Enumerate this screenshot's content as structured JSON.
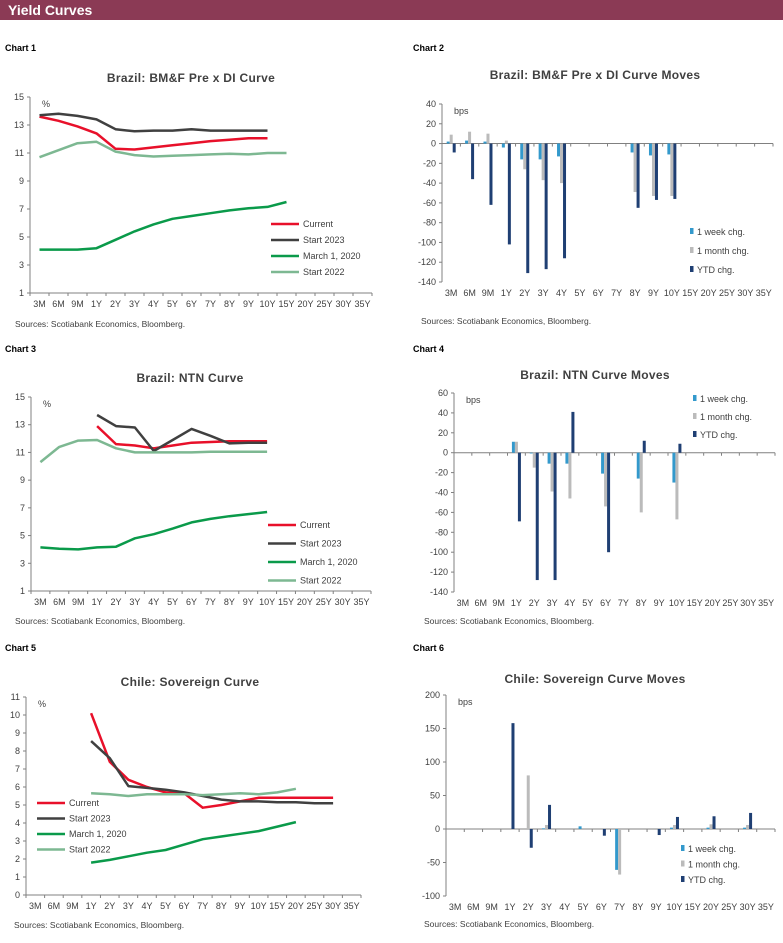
{
  "header": {
    "title": "Yield Curves"
  },
  "panels": [
    {
      "label": "Chart 1",
      "source": "Sources: Scotiabank Economics, Bloomberg."
    },
    {
      "label": "Chart 2",
      "source": "Sources: Scotiabank Economics, Bloomberg."
    },
    {
      "label": "Chart 3",
      "source": "Sources: Scotiabank Economics, Bloomberg."
    },
    {
      "label": "Chart 4",
      "source": "Sources: Scotiabank Economics, Bloomberg."
    },
    {
      "label": "Chart 5",
      "source": "Sources: Scotiabank Economics, Bloomberg."
    },
    {
      "label": "Chart 6",
      "source": "Sources: Scotiabank Economics, Bloomberg."
    }
  ],
  "colors": {
    "header": "#8B3A55",
    "current": "#E8102A",
    "start2023": "#404040",
    "march2020": "#0A9A4A",
    "start2022": "#7DB892",
    "week": "#3399CC",
    "month": "#BBBBBB",
    "ytd": "#1F3F73"
  },
  "chart_data": [
    {
      "type": "line",
      "title": "Brazil: BM&F Pre x DI Curve",
      "ylabel": "%",
      "ylim": [
        1,
        15
      ],
      "y_ticks": [
        1,
        3,
        5,
        7,
        9,
        11,
        13,
        15
      ],
      "legend": "right",
      "categories": [
        "3M",
        "6M",
        "9M",
        "1Y",
        "2Y",
        "3Y",
        "4Y",
        "5Y",
        "6Y",
        "7Y",
        "8Y",
        "9Y",
        "10Y",
        "15Y",
        "20Y",
        "25Y",
        "30Y",
        "35Y"
      ],
      "series": [
        {
          "name": "Current",
          "color": "#E8102A",
          "values": [
            13.6,
            13.3,
            12.9,
            12.4,
            11.3,
            11.25,
            11.4,
            11.55,
            11.7,
            11.85,
            11.95,
            12.05,
            12.05,
            null,
            null,
            null,
            null,
            null
          ]
        },
        {
          "name": "Start 2023",
          "color": "#404040",
          "values": [
            13.7,
            13.8,
            13.65,
            13.4,
            12.7,
            12.55,
            12.6,
            12.6,
            12.7,
            12.6,
            12.6,
            12.6,
            12.6,
            null,
            null,
            null,
            null,
            null
          ]
        },
        {
          "name": "March 1, 2020",
          "color": "#0A9A4A",
          "values": [
            4.1,
            4.1,
            4.1,
            4.2,
            4.8,
            5.4,
            5.9,
            6.3,
            6.5,
            6.7,
            6.9,
            7.05,
            7.15,
            7.5,
            null,
            null,
            null,
            null
          ]
        },
        {
          "name": "Start 2022",
          "color": "#7DB892",
          "values": [
            10.7,
            11.2,
            11.7,
            11.8,
            11.1,
            10.85,
            10.75,
            10.8,
            10.85,
            10.9,
            10.95,
            10.9,
            11.0,
            11.0,
            null,
            null,
            null,
            null
          ]
        }
      ]
    },
    {
      "type": "bar",
      "title": "Brazil: BM&F Pre x DI Curve Moves",
      "ylabel": "bps",
      "ylim": [
        -140,
        40
      ],
      "y_ticks": [
        -140,
        -120,
        -100,
        -80,
        -60,
        -40,
        -20,
        0,
        20,
        40
      ],
      "legend": "bottom-right",
      "categories": [
        "3M",
        "6M",
        "9M",
        "1Y",
        "2Y",
        "3Y",
        "4Y",
        "5Y",
        "6Y",
        "7Y",
        "8Y",
        "9Y",
        "10Y",
        "15Y",
        "20Y",
        "25Y",
        "30Y",
        "35Y"
      ],
      "series": [
        {
          "name": "1 week chg.",
          "color": "#3399CC",
          "values": [
            2,
            3,
            2,
            -4,
            -16,
            -16,
            -13,
            null,
            null,
            null,
            -9,
            -12,
            -11,
            null,
            null,
            null,
            null,
            null
          ]
        },
        {
          "name": "1 month chg.",
          "color": "#BBBBBB",
          "values": [
            9,
            12,
            10,
            3,
            -26,
            -37,
            -40,
            null,
            null,
            null,
            -49,
            -53,
            -53,
            null,
            null,
            null,
            null,
            null
          ]
        },
        {
          "name": "YTD chg.",
          "color": "#1F3F73",
          "values": [
            -9,
            -36,
            -62,
            -102,
            -131,
            -127,
            -116,
            null,
            null,
            null,
            -65,
            -57,
            -56,
            null,
            null,
            null,
            null,
            null
          ]
        }
      ]
    },
    {
      "type": "line",
      "title": "Brazil: NTN Curve",
      "ylabel": "%",
      "ylim": [
        1,
        15
      ],
      "y_ticks": [
        1,
        3,
        5,
        7,
        9,
        11,
        13,
        15
      ],
      "legend": "right",
      "categories": [
        "3M",
        "6M",
        "9M",
        "1Y",
        "2Y",
        "3Y",
        "4Y",
        "5Y",
        "6Y",
        "7Y",
        "8Y",
        "9Y",
        "10Y",
        "15Y",
        "20Y",
        "25Y",
        "30Y",
        "35Y"
      ],
      "series": [
        {
          "name": "Current",
          "color": "#E8102A",
          "values": [
            null,
            null,
            null,
            12.9,
            11.6,
            11.5,
            11.3,
            11.5,
            11.7,
            11.75,
            11.8,
            11.8,
            11.8,
            null,
            null,
            null,
            null,
            null
          ]
        },
        {
          "name": "Start 2023",
          "color": "#404040",
          "values": [
            null,
            null,
            null,
            13.7,
            12.9,
            12.8,
            11.1,
            11.9,
            12.7,
            12.2,
            11.65,
            11.7,
            11.7,
            null,
            null,
            null,
            null,
            null
          ]
        },
        {
          "name": "March 1, 2020",
          "color": "#0A9A4A",
          "values": [
            4.15,
            4.05,
            4.0,
            4.15,
            4.2,
            4.8,
            5.1,
            5.5,
            5.95,
            6.2,
            6.4,
            6.55,
            6.7,
            null,
            null,
            null,
            null,
            null
          ]
        },
        {
          "name": "Start 2022",
          "color": "#7DB892",
          "values": [
            10.3,
            11.4,
            11.85,
            11.9,
            11.3,
            11.0,
            11.0,
            11.0,
            11.0,
            11.05,
            11.05,
            11.05,
            11.05,
            null,
            null,
            null,
            null,
            null
          ]
        }
      ]
    },
    {
      "type": "bar",
      "title": "Brazil: NTN Curve Moves",
      "ylabel": "bps",
      "ylim": [
        -140,
        60
      ],
      "y_ticks": [
        -140,
        -120,
        -100,
        -80,
        -60,
        -40,
        -20,
        0,
        20,
        40,
        60
      ],
      "legend": "top-right",
      "categories": [
        "3M",
        "6M",
        "9M",
        "1Y",
        "2Y",
        "3Y",
        "4Y",
        "5Y",
        "6Y",
        "7Y",
        "8Y",
        "9Y",
        "10Y",
        "15Y",
        "20Y",
        "25Y",
        "30Y",
        "35Y"
      ],
      "series": [
        {
          "name": "1 week chg.",
          "color": "#3399CC",
          "values": [
            null,
            null,
            null,
            11,
            0,
            -11,
            -11,
            null,
            -21,
            null,
            -26,
            null,
            -30,
            null,
            null,
            null,
            null,
            null
          ]
        },
        {
          "name": "1 month chg.",
          "color": "#BBBBBB",
          "values": [
            null,
            null,
            null,
            11,
            -15,
            -39,
            -46,
            null,
            -54,
            null,
            -60,
            null,
            -67,
            null,
            null,
            null,
            null,
            null
          ]
        },
        {
          "name": "YTD chg.",
          "color": "#1F3F73",
          "values": [
            null,
            null,
            null,
            -69,
            -128,
            -128,
            41,
            null,
            -100,
            null,
            12,
            null,
            9,
            null,
            null,
            null,
            null,
            null
          ]
        }
      ]
    },
    {
      "type": "line",
      "title": "Chile: Sovereign Curve",
      "ylabel": "%",
      "ylim": [
        0,
        11
      ],
      "y_ticks": [
        0,
        1,
        2,
        3,
        4,
        5,
        6,
        7,
        8,
        9,
        10,
        11
      ],
      "legend": "left",
      "categories": [
        "3M",
        "6M",
        "9M",
        "1Y",
        "2Y",
        "3Y",
        "4Y",
        "5Y",
        "6Y",
        "7Y",
        "8Y",
        "9Y",
        "10Y",
        "15Y",
        "20Y",
        "25Y",
        "30Y",
        "35Y"
      ],
      "series": [
        {
          "name": "Current",
          "color": "#E8102A",
          "values": [
            null,
            null,
            null,
            10.1,
            7.4,
            6.4,
            6.0,
            5.7,
            5.65,
            4.85,
            5.0,
            5.2,
            5.4,
            5.4,
            5.4,
            5.4,
            5.4,
            null
          ]
        },
        {
          "name": "Start 2023",
          "color": "#404040",
          "values": [
            null,
            null,
            null,
            8.55,
            7.6,
            6.05,
            5.95,
            5.85,
            5.7,
            5.5,
            5.3,
            5.2,
            5.2,
            5.15,
            5.15,
            5.1,
            5.1,
            null
          ]
        },
        {
          "name": "March 1, 2020",
          "color": "#0A9A4A",
          "values": [
            null,
            null,
            null,
            1.8,
            1.95,
            2.15,
            2.35,
            2.5,
            2.8,
            3.1,
            3.25,
            3.4,
            3.55,
            3.8,
            4.05,
            null,
            null,
            null
          ]
        },
        {
          "name": "Start 2022",
          "color": "#7DB892",
          "values": [
            null,
            null,
            null,
            5.65,
            5.6,
            5.5,
            5.6,
            5.6,
            5.6,
            5.55,
            5.6,
            5.65,
            5.6,
            5.7,
            5.9,
            null,
            null,
            null
          ]
        }
      ]
    },
    {
      "type": "bar",
      "title": "Chile: Sovereign Curve Moves",
      "ylabel": "bps",
      "ylim": [
        -100,
        200
      ],
      "y_ticks": [
        -100,
        -50,
        0,
        50,
        100,
        150,
        200
      ],
      "legend": "bottom-right",
      "categories": [
        "3M",
        "6M",
        "9M",
        "1Y",
        "2Y",
        "3Y",
        "4Y",
        "5Y",
        "6Y",
        "7Y",
        "8Y",
        "9Y",
        "10Y",
        "15Y",
        "20Y",
        "25Y",
        "30Y",
        "35Y"
      ],
      "series": [
        {
          "name": "1 week chg.",
          "color": "#3399CC",
          "values": [
            null,
            null,
            null,
            null,
            null,
            1,
            null,
            4,
            null,
            -61,
            null,
            null,
            2,
            null,
            2,
            null,
            2,
            null
          ]
        },
        {
          "name": "1 month chg.",
          "color": "#BBBBBB",
          "values": [
            null,
            null,
            null,
            null,
            80,
            6,
            null,
            null,
            null,
            -68,
            null,
            null,
            6,
            null,
            7,
            null,
            6,
            null
          ]
        },
        {
          "name": "YTD chg.",
          "color": "#1F3F73",
          "values": [
            null,
            null,
            null,
            158,
            -28,
            36,
            null,
            null,
            -10,
            null,
            null,
            -9,
            18,
            null,
            19,
            null,
            24,
            null
          ]
        }
      ]
    }
  ]
}
